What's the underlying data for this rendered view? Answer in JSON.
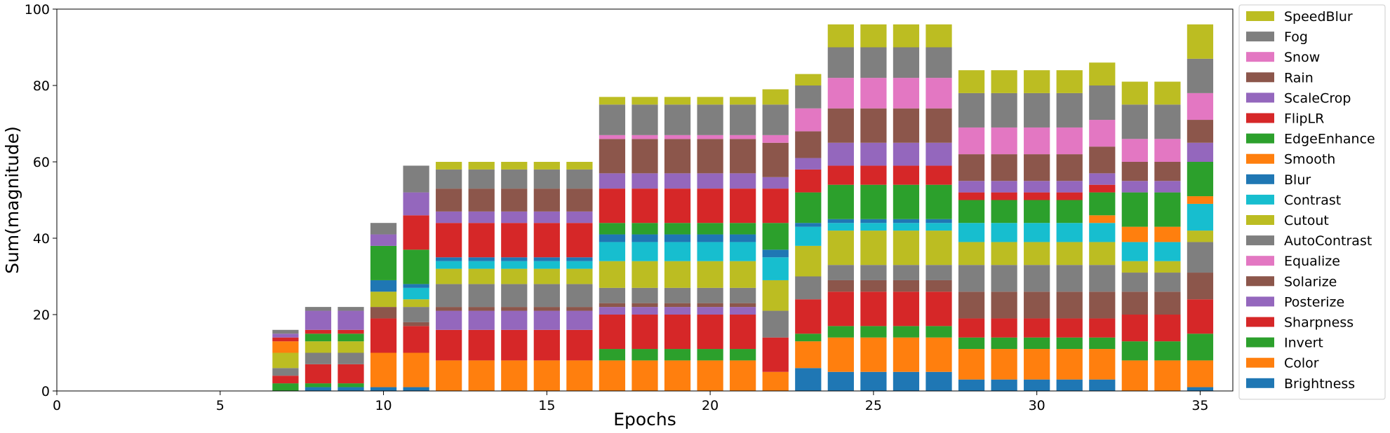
{
  "chart_data": {
    "type": "bar",
    "stacked": true,
    "xlabel": "Epochs",
    "ylabel": "Sum(magnitude)",
    "xlim": [
      0,
      36
    ],
    "ylim": [
      0,
      100
    ],
    "xticks": [
      0,
      5,
      10,
      15,
      20,
      25,
      30,
      35
    ],
    "yticks": [
      0,
      20,
      40,
      60,
      80,
      100
    ],
    "grid": false,
    "legend": "right",
    "x": [
      7,
      8,
      9,
      10,
      11,
      12,
      13,
      14,
      15,
      16,
      17,
      18,
      19,
      20,
      21,
      22,
      23,
      24,
      25,
      26,
      27,
      28,
      29,
      30,
      31,
      32,
      33,
      34,
      35
    ],
    "series": [
      {
        "name": "Brightness",
        "color": "#1f77b4",
        "values": [
          0,
          1,
          1,
          1,
          1,
          0,
          0,
          0,
          0,
          0,
          0,
          0,
          0,
          0,
          0,
          0,
          6,
          5,
          5,
          5,
          5,
          3,
          3,
          3,
          3,
          3,
          0,
          0,
          1
        ]
      },
      {
        "name": "Color",
        "color": "#ff7f0e",
        "values": [
          0,
          0,
          0,
          9,
          9,
          8,
          8,
          8,
          8,
          8,
          8,
          8,
          8,
          8,
          8,
          5,
          7,
          9,
          9,
          9,
          9,
          8,
          8,
          8,
          8,
          8,
          8,
          8,
          7
        ]
      },
      {
        "name": "Invert",
        "color": "#2ca02c",
        "values": [
          2,
          1,
          1,
          0,
          0,
          0,
          0,
          0,
          0,
          0,
          3,
          3,
          3,
          3,
          3,
          0,
          2,
          3,
          3,
          3,
          3,
          3,
          3,
          3,
          3,
          3,
          5,
          5,
          7
        ]
      },
      {
        "name": "Sharpness",
        "color": "#d62728",
        "values": [
          2,
          5,
          5,
          9,
          7,
          8,
          8,
          8,
          8,
          8,
          9,
          9,
          9,
          9,
          9,
          9,
          9,
          9,
          9,
          9,
          9,
          5,
          5,
          5,
          5,
          5,
          7,
          7,
          9
        ]
      },
      {
        "name": "Posterize",
        "color": "#9467bd",
        "values": [
          0,
          0,
          0,
          0,
          0,
          5,
          5,
          5,
          5,
          5,
          2,
          2,
          2,
          2,
          2,
          0,
          0,
          0,
          0,
          0,
          0,
          0,
          0,
          0,
          0,
          0,
          0,
          0,
          0
        ]
      },
      {
        "name": "Solarize",
        "color": "#8c564b",
        "values": [
          0,
          0,
          0,
          3,
          1,
          1,
          1,
          1,
          1,
          1,
          1,
          1,
          1,
          1,
          1,
          0,
          0,
          3,
          3,
          3,
          3,
          7,
          7,
          7,
          7,
          7,
          6,
          6,
          7
        ]
      },
      {
        "name": "Equalize",
        "color": "#e377c2",
        "values": [
          0,
          0,
          0,
          0,
          0,
          0,
          0,
          0,
          0,
          0,
          0,
          0,
          0,
          0,
          0,
          0,
          0,
          0,
          0,
          0,
          0,
          0,
          0,
          0,
          0,
          0,
          0,
          0,
          0
        ]
      },
      {
        "name": "AutoContrast",
        "color": "#7f7f7f",
        "values": [
          2,
          3,
          3,
          0,
          4,
          6,
          6,
          6,
          6,
          6,
          4,
          4,
          4,
          4,
          4,
          7,
          6,
          4,
          4,
          4,
          4,
          7,
          7,
          7,
          7,
          7,
          5,
          5,
          8
        ]
      },
      {
        "name": "Cutout",
        "color": "#bcbd22",
        "values": [
          4,
          3,
          3,
          4,
          2,
          4,
          4,
          4,
          4,
          4,
          7,
          7,
          7,
          7,
          7,
          8,
          8,
          9,
          9,
          9,
          9,
          6,
          6,
          6,
          6,
          6,
          3,
          3,
          3
        ]
      },
      {
        "name": "Contrast",
        "color": "#17becf",
        "values": [
          0,
          0,
          0,
          0,
          3,
          2,
          2,
          2,
          2,
          2,
          5,
          5,
          5,
          5,
          5,
          6,
          5,
          2,
          2,
          2,
          2,
          5,
          5,
          5,
          5,
          5,
          5,
          5,
          7
        ]
      },
      {
        "name": "Blur",
        "color": "#1f77b4",
        "values": [
          0,
          0,
          0,
          3,
          1,
          1,
          1,
          1,
          1,
          1,
          2,
          2,
          2,
          2,
          2,
          2,
          1,
          1,
          1,
          1,
          1,
          0,
          0,
          0,
          0,
          0,
          0,
          0,
          0
        ]
      },
      {
        "name": "Smooth",
        "color": "#ff7f0e",
        "values": [
          3,
          0,
          0,
          0,
          0,
          0,
          0,
          0,
          0,
          0,
          0,
          0,
          0,
          0,
          0,
          0,
          0,
          0,
          0,
          0,
          0,
          0,
          0,
          0,
          0,
          2,
          4,
          4,
          2
        ]
      },
      {
        "name": "EdgeEnhance",
        "color": "#2ca02c",
        "values": [
          0,
          2,
          2,
          9,
          9,
          0,
          0,
          0,
          0,
          0,
          3,
          3,
          3,
          3,
          3,
          7,
          8,
          9,
          9,
          9,
          9,
          6,
          6,
          6,
          6,
          6,
          9,
          9,
          9
        ]
      },
      {
        "name": "FlipLR",
        "color": "#d62728",
        "values": [
          1,
          1,
          1,
          0,
          9,
          9,
          9,
          9,
          9,
          9,
          9,
          9,
          9,
          9,
          9,
          9,
          6,
          5,
          5,
          5,
          5,
          2,
          2,
          2,
          2,
          2,
          0,
          0,
          0
        ]
      },
      {
        "name": "ScaleCrop",
        "color": "#9467bd",
        "values": [
          1,
          5,
          5,
          3,
          6,
          3,
          3,
          3,
          3,
          3,
          4,
          4,
          4,
          4,
          4,
          3,
          3,
          6,
          6,
          6,
          6,
          3,
          3,
          3,
          3,
          3,
          3,
          3,
          5
        ]
      },
      {
        "name": "Rain",
        "color": "#8c564b",
        "values": [
          0,
          0,
          0,
          0,
          0,
          6,
          6,
          6,
          6,
          6,
          9,
          9,
          9,
          9,
          9,
          9,
          7,
          9,
          9,
          9,
          9,
          7,
          7,
          7,
          7,
          7,
          5,
          5,
          6
        ]
      },
      {
        "name": "Snow",
        "color": "#e377c2",
        "values": [
          0,
          0,
          0,
          0,
          0,
          0,
          0,
          0,
          0,
          0,
          1,
          1,
          1,
          1,
          1,
          2,
          6,
          8,
          8,
          8,
          8,
          7,
          7,
          7,
          7,
          7,
          6,
          6,
          7
        ]
      },
      {
        "name": "Fog",
        "color": "#7f7f7f",
        "values": [
          1,
          1,
          1,
          3,
          7,
          5,
          5,
          5,
          5,
          5,
          8,
          8,
          8,
          8,
          8,
          8,
          6,
          8,
          8,
          8,
          8,
          9,
          9,
          9,
          9,
          9,
          9,
          9,
          9
        ]
      },
      {
        "name": "SpeedBlur",
        "color": "#bcbd22",
        "values": [
          0,
          0,
          0,
          0,
          0,
          2,
          2,
          2,
          2,
          2,
          2,
          2,
          2,
          2,
          2,
          4,
          3,
          6,
          6,
          6,
          6,
          6,
          6,
          6,
          6,
          6,
          6,
          6,
          9
        ]
      }
    ]
  }
}
